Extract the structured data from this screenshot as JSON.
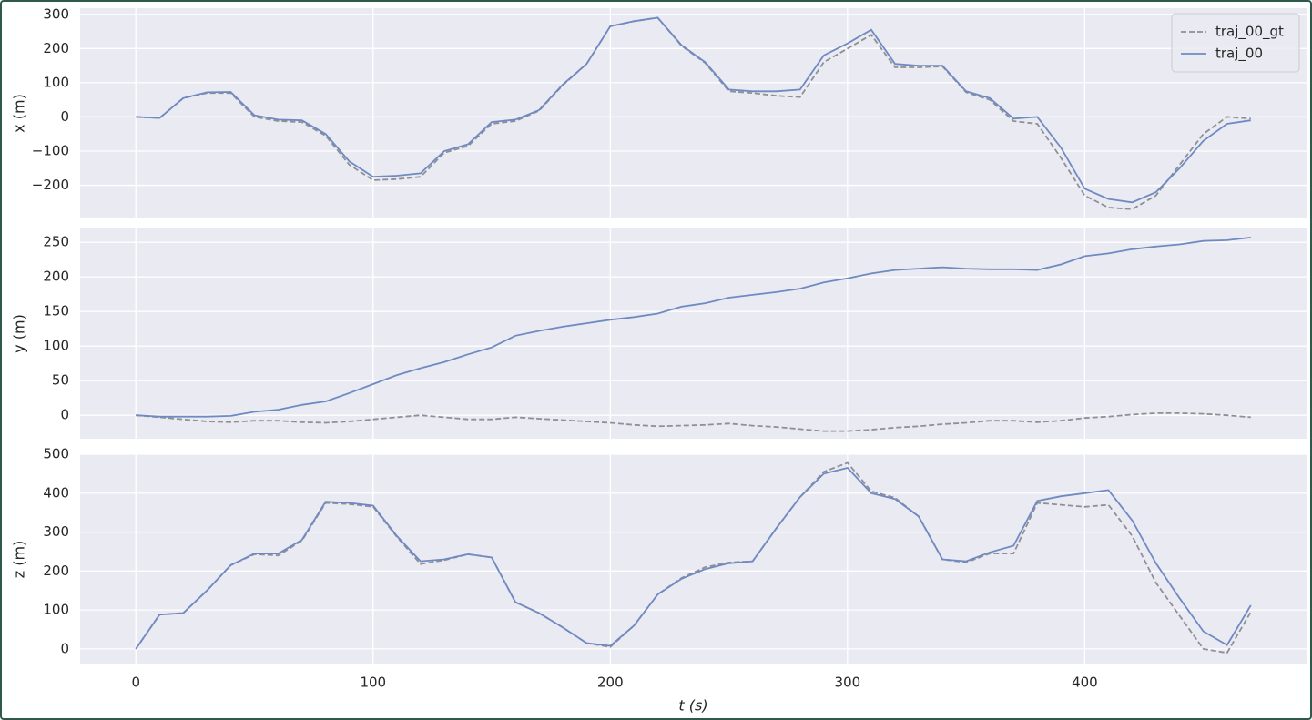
{
  "chart_data": [
    {
      "type": "line",
      "ylabel": "x (m)",
      "legend": "upper right",
      "grid": true,
      "xlim": [
        -23.5,
        493.5
      ],
      "xticks": [
        0,
        100,
        200,
        300,
        400
      ],
      "ylim": [
        -297,
        318
      ],
      "yticks": [
        {
          "value": -200,
          "label": "−200"
        },
        {
          "value": -100,
          "label": "−100"
        },
        0,
        100,
        200,
        300
      ],
      "x": [
        0,
        10,
        20,
        30,
        40,
        50,
        60,
        70,
        80,
        90,
        100,
        110,
        120,
        130,
        140,
        150,
        160,
        170,
        180,
        190,
        200,
        210,
        220,
        230,
        240,
        250,
        260,
        270,
        280,
        290,
        300,
        310,
        320,
        330,
        340,
        350,
        360,
        370,
        380,
        390,
        400,
        410,
        420,
        430,
        440,
        450,
        460,
        470
      ],
      "series": [
        {
          "name": "traj_00_gt",
          "color": "#8f8f94",
          "linestyle": "dashed",
          "values": [
            0,
            -3,
            55,
            70,
            70,
            0,
            -12,
            -15,
            -55,
            -140,
            -185,
            -182,
            -175,
            -105,
            -85,
            -20,
            -12,
            18,
            93,
            155,
            265,
            280,
            290,
            208,
            158,
            75,
            70,
            62,
            58,
            160,
            200,
            240,
            145,
            145,
            148,
            72,
            50,
            -12,
            -20,
            -120,
            -230,
            -265,
            -270,
            -230,
            -140,
            -50,
            0,
            -5
          ]
        },
        {
          "name": "traj_00",
          "color": "#6f8ac2",
          "linestyle": "solid",
          "values": [
            0,
            -3,
            55,
            72,
            73,
            5,
            -8,
            -10,
            -50,
            -130,
            -175,
            -172,
            -165,
            -100,
            -80,
            -15,
            -8,
            20,
            95,
            155,
            265,
            280,
            290,
            210,
            160,
            80,
            75,
            75,
            80,
            180,
            215,
            255,
            155,
            150,
            150,
            75,
            55,
            -5,
            0,
            -90,
            -210,
            -240,
            -250,
            -220,
            -150,
            -70,
            -20,
            -10
          ]
        }
      ]
    },
    {
      "type": "line",
      "ylabel": "y (m)",
      "grid": true,
      "xlim": [
        -23.5,
        493.5
      ],
      "xticks": [
        0,
        100,
        200,
        300,
        400
      ],
      "ylim": [
        -34,
        270
      ],
      "yticks": [
        0,
        50,
        100,
        150,
        200,
        250
      ],
      "x": [
        0,
        10,
        20,
        30,
        40,
        50,
        60,
        70,
        80,
        90,
        100,
        110,
        120,
        130,
        140,
        150,
        160,
        170,
        180,
        190,
        200,
        210,
        220,
        230,
        240,
        250,
        260,
        270,
        280,
        290,
        300,
        310,
        320,
        330,
        340,
        350,
        360,
        370,
        380,
        390,
        400,
        410,
        420,
        430,
        440,
        450,
        460,
        470
      ],
      "series": [
        {
          "color": "#8f8f94",
          "linestyle": "dashed",
          "values": [
            0,
            -3,
            -6,
            -9,
            -10,
            -8,
            -8,
            -10,
            -11,
            -9,
            -6,
            -3,
            0,
            -3,
            -6,
            -6,
            -3,
            -5,
            -7,
            -9,
            -11,
            -14,
            -16,
            -15,
            -14,
            -12,
            -15,
            -17,
            -20,
            -23,
            -23,
            -21,
            -18,
            -16,
            -13,
            -11,
            -8,
            -8,
            -10,
            -8,
            -4,
            -2,
            1,
            3,
            3,
            2,
            0,
            -3
          ]
        },
        {
          "color": "#6f8ac2",
          "linestyle": "solid",
          "values": [
            0,
            -2,
            -2,
            -2,
            -1,
            5,
            8,
            15,
            20,
            32,
            45,
            58,
            68,
            77,
            88,
            98,
            115,
            122,
            128,
            133,
            138,
            142,
            147,
            157,
            162,
            170,
            174,
            178,
            183,
            192,
            198,
            205,
            210,
            212,
            214,
            212,
            211,
            211,
            210,
            218,
            230,
            234,
            240,
            244,
            247,
            252,
            253,
            257
          ]
        }
      ]
    },
    {
      "type": "line",
      "ylabel": "z (m)",
      "xlabel": "t (s)",
      "grid": true,
      "xlim": [
        -23.5,
        493.5
      ],
      "xticks": [
        0,
        100,
        200,
        300,
        400
      ],
      "ylim": [
        -40,
        500
      ],
      "yticks": [
        0,
        100,
        200,
        300,
        400,
        500
      ],
      "x": [
        0,
        10,
        20,
        30,
        40,
        50,
        60,
        70,
        80,
        90,
        100,
        110,
        120,
        130,
        140,
        150,
        160,
        170,
        180,
        190,
        200,
        210,
        220,
        230,
        240,
        250,
        260,
        270,
        280,
        290,
        300,
        310,
        320,
        330,
        340,
        350,
        360,
        370,
        380,
        390,
        400,
        410,
        420,
        430,
        440,
        450,
        460,
        470
      ],
      "series": [
        {
          "color": "#8f8f94",
          "linestyle": "dashed",
          "values": [
            0,
            88,
            92,
            150,
            215,
            243,
            240,
            278,
            375,
            372,
            365,
            288,
            218,
            228,
            243,
            235,
            120,
            92,
            55,
            15,
            5,
            60,
            140,
            182,
            210,
            222,
            225,
            310,
            390,
            455,
            478,
            405,
            388,
            340,
            230,
            222,
            245,
            245,
            375,
            370,
            365,
            370,
            290,
            170,
            85,
            0,
            -10,
            95
          ]
        },
        {
          "color": "#6f8ac2",
          "linestyle": "solid",
          "values": [
            0,
            88,
            92,
            150,
            215,
            245,
            245,
            280,
            378,
            375,
            368,
            290,
            225,
            230,
            243,
            235,
            120,
            92,
            55,
            15,
            8,
            60,
            140,
            180,
            205,
            220,
            225,
            310,
            390,
            450,
            465,
            400,
            385,
            340,
            230,
            225,
            248,
            265,
            380,
            392,
            400,
            408,
            330,
            220,
            130,
            45,
            10,
            112
          ]
        }
      ]
    }
  ]
}
